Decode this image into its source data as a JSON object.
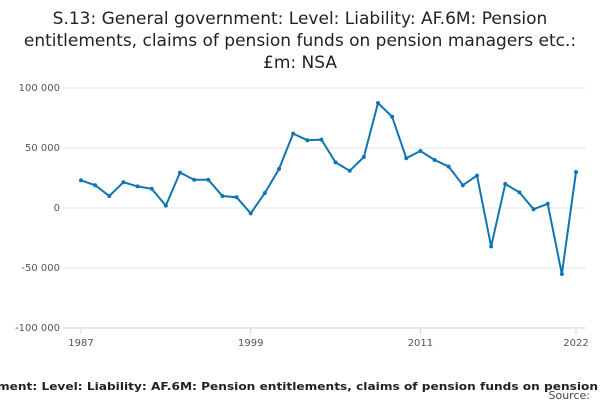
{
  "chart_data": {
    "type": "line",
    "title": "S.13: General government: Level: Liability: AF.6M: Pension entitlements, claims of pension funds on pension managers etc.: £m: NSA",
    "footer": "ment: Level: Liability: AF.6M: Pension entitlements, claims of pension funds on pension",
    "source": "Source:",
    "x": [
      1987,
      1988,
      1989,
      1990,
      1991,
      1992,
      1993,
      1994,
      1995,
      1996,
      1997,
      1998,
      1999,
      2000,
      2001,
      2002,
      2003,
      2004,
      2005,
      2006,
      2007,
      2008,
      2009,
      2010,
      2011,
      2012,
      2013,
      2014,
      2015,
      2016,
      2017,
      2018,
      2019,
      2020,
      2021,
      2022
    ],
    "series": [
      {
        "color": "#0f75b3",
        "values": [
          23000,
          19000,
          10000,
          21500,
          18000,
          16000,
          2000,
          29500,
          23500,
          23500,
          10000,
          9000,
          -4500,
          12500,
          32500,
          62000,
          56500,
          57000,
          38000,
          31000,
          42500,
          87500,
          76000,
          41500,
          47500,
          40000,
          34500,
          19000,
          27000,
          -32000,
          20000,
          13000,
          -1000,
          3500,
          -55000,
          30000
        ]
      }
    ],
    "xlim": [
      1987,
      2022
    ],
    "xticks": [
      1987,
      1999,
      2011,
      2022
    ],
    "ylim": [
      -100000,
      100000
    ],
    "yticks": [
      {
        "value": -100000,
        "label": "-100 000"
      },
      {
        "value": -50000,
        "label": "-50 000"
      },
      {
        "value": 0,
        "label": "0"
      },
      {
        "value": 50000,
        "label": "50 000"
      },
      {
        "value": 100000,
        "label": "100 000"
      }
    ],
    "grid": true
  }
}
